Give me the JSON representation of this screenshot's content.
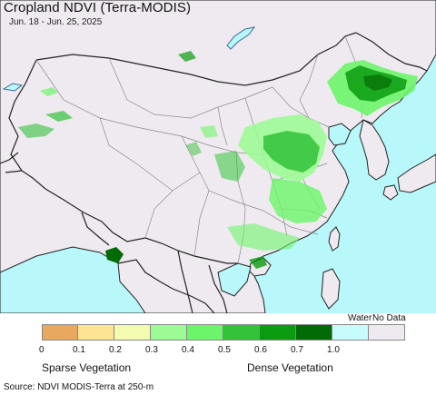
{
  "title": "Cropland NDVI (Terra-MODIS)",
  "date_range": "Jun. 18 - Jun. 25, 2025",
  "legend": {
    "swatches": [
      {
        "name": "ndvi-0-0.1",
        "color": "#e8a860"
      },
      {
        "name": "ndvi-0.1-0.2",
        "color": "#fde394"
      },
      {
        "name": "ndvi-0.2-0.3",
        "color": "#f2fbb0"
      },
      {
        "name": "ndvi-0.3-0.4",
        "color": "#9dfb95"
      },
      {
        "name": "ndvi-0.4-0.5",
        "color": "#6cf56a"
      },
      {
        "name": "ndvi-0.5-0.6",
        "color": "#33c23a"
      },
      {
        "name": "ndvi-0.6-0.7",
        "color": "#0a9b10"
      },
      {
        "name": "ndvi-0.7-1.0",
        "color": "#036b05"
      },
      {
        "name": "water",
        "color": "#c8fbfb"
      },
      {
        "name": "no-data",
        "color": "#efeaf0"
      }
    ],
    "ticks": [
      "0",
      "0.1",
      "0.2",
      "0.3",
      "0.4",
      "0.5",
      "0.6",
      "0.7",
      "1.0"
    ],
    "water_label": "Water",
    "nodata_label": "No Data",
    "sparse_label": "Sparse Vegetation",
    "dense_label": "Dense Vegetation"
  },
  "source": "Source: NDVI MODIS-Terra at 250-m",
  "colors": {
    "land": "#efeaf0",
    "sea": "#b8f8fa",
    "border": "#222222",
    "province_border": "#9a9a9a"
  }
}
